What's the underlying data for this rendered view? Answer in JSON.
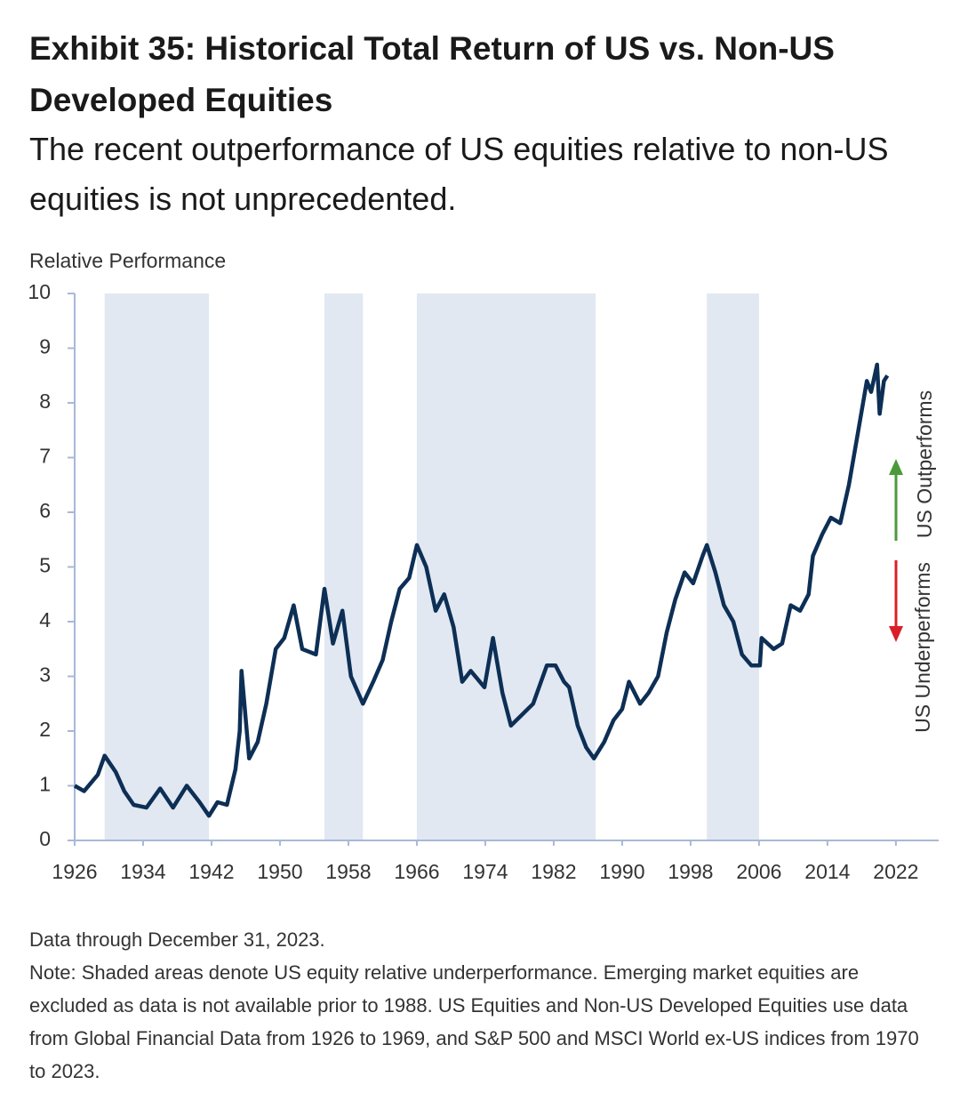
{
  "chart_data": {
    "type": "line",
    "title": "Exhibit 35: Historical Total Return of US vs. Non-US Developed Equities",
    "subtitle": "The recent outperformance of US equities relative to non-US equities is not unprecedented.",
    "y_label": "Relative Performance",
    "xlim": [
      1926,
      2027
    ],
    "xticks": [
      1926,
      1934,
      1942,
      1950,
      1958,
      1966,
      1974,
      1982,
      1990,
      1998,
      2006,
      2014,
      2022
    ],
    "ylim": [
      0,
      10
    ],
    "yticks": [
      0,
      1,
      2,
      3,
      4,
      5,
      6,
      7,
      8,
      9,
      10
    ],
    "shaded_periods": [
      [
        1929.5,
        1941.7
      ],
      [
        1955.2,
        1959.7
      ],
      [
        1966.0,
        1986.9
      ],
      [
        1999.9,
        2006.0
      ]
    ],
    "shade_color": "#e1e8f2",
    "series": [
      {
        "name": "Relative Performance",
        "color": "#0d2f55",
        "x": [
          1926,
          1927.1,
          1928.7,
          1929.5,
          1930.8,
          1931.8,
          1932.9,
          1934.4,
          1936,
          1937.5,
          1939.1,
          1940.6,
          1941.7,
          1942.7,
          1943.8,
          1944.8,
          1945.3,
          1945.5,
          1946.4,
          1947.4,
          1948.4,
          1949.5,
          1950.5,
          1951.6,
          1952.6,
          1954.2,
          1955.2,
          1956.2,
          1957.3,
          1958.3,
          1959.7,
          1960.9,
          1962,
          1963,
          1964,
          1965.1,
          1966,
          1967.1,
          1968.2,
          1969.2,
          1970.3,
          1971.3,
          1972.3,
          1973.9,
          1974.9,
          1976,
          1977,
          1979.6,
          1981.2,
          1982.2,
          1983.2,
          1983.8,
          1984.8,
          1985.8,
          1986.7,
          1987.9,
          1989,
          1990,
          1990.8,
          1992.1,
          1993.1,
          1994.2,
          1995.2,
          1996.2,
          1997.3,
          1998.3,
          1999.4,
          1999.9,
          2000.9,
          2001.9,
          2003,
          2004,
          2005.1,
          2006.1,
          2006.3,
          2007.7,
          2008.7,
          2009.7,
          2010.8,
          2011.8,
          2012.3,
          2013.4,
          2014.4,
          2015.5,
          2016.5,
          2017.5,
          2018.6,
          2019.1,
          2019.8,
          2020.1,
          2020.6,
          2021
        ],
        "values": [
          1.0,
          0.9,
          1.2,
          1.55,
          1.25,
          0.9,
          0.65,
          0.6,
          0.95,
          0.6,
          1.0,
          0.7,
          0.45,
          0.7,
          0.65,
          1.3,
          2.0,
          3.1,
          1.5,
          1.8,
          2.5,
          3.5,
          3.7,
          4.3,
          3.5,
          3.4,
          4.6,
          3.6,
          4.2,
          3.0,
          2.5,
          2.9,
          3.3,
          4.0,
          4.6,
          4.8,
          5.4,
          5.0,
          4.2,
          4.5,
          3.9,
          2.9,
          3.1,
          2.8,
          3.7,
          2.7,
          2.1,
          2.5,
          3.2,
          3.2,
          2.9,
          2.8,
          2.1,
          1.7,
          1.5,
          1.8,
          2.2,
          2.4,
          2.9,
          2.5,
          2.7,
          3.0,
          3.8,
          4.4,
          4.9,
          4.7,
          5.2,
          5.4,
          4.9,
          4.3,
          4.0,
          3.4,
          3.2,
          3.2,
          3.7,
          3.5,
          3.6,
          4.3,
          4.2,
          4.5,
          5.2,
          5.6,
          5.9,
          5.8,
          6.5,
          7.4,
          8.4,
          8.2,
          8.7,
          7.8,
          8.4,
          8.5
        ]
      }
    ],
    "annotations": [
      "US Outperforms",
      "US Underperforms"
    ],
    "source": "Data through December 31, 2023.",
    "note": "Note: Shaded areas denote US equity relative underperformance. Emerging market equities are excluded as data is not available prior to 1988. US Equities and Non-US Developed Equities use data from Global Financial Data from 1926 to 1969, and S&P 500 and MSCI World ex-US indices from 1970 to 2023."
  }
}
